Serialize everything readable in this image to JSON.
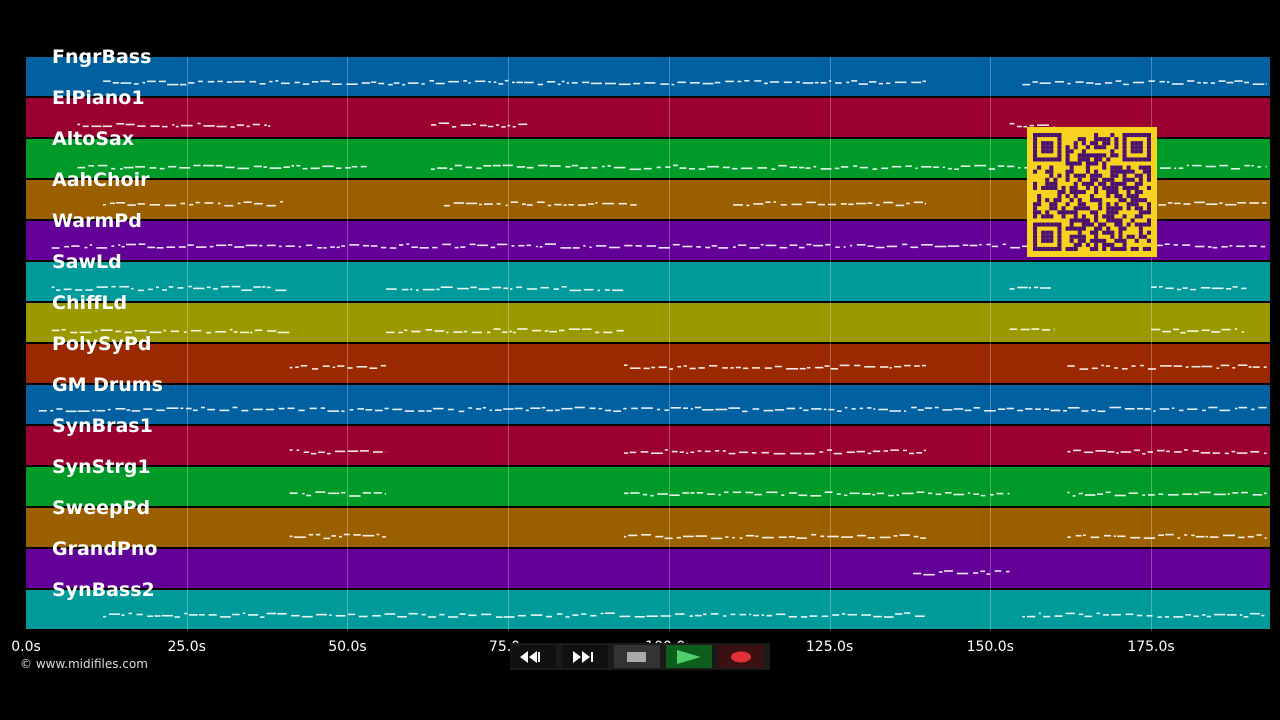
{
  "tracks": [
    {
      "name": "FngrBass",
      "color": "#0060a0"
    },
    {
      "name": "ElPiano1",
      "color": "#9a0030"
    },
    {
      "name": "AltoSax",
      "color": "#009a28"
    },
    {
      "name": "AahChoir",
      "color": "#9a6000"
    },
    {
      "name": "WarmPd",
      "color": "#620098"
    },
    {
      "name": "SawLd",
      "color": "#009a9a"
    },
    {
      "name": "ChiffLd",
      "color": "#9a9a00"
    },
    {
      "name": "PolySyPd",
      "color": "#9a2800"
    },
    {
      "name": "GM Drums",
      "color": "#0060a0"
    },
    {
      "name": "SynBras1",
      "color": "#9a0030"
    },
    {
      "name": "SynStrg1",
      "color": "#009a28"
    },
    {
      "name": "SweepPd",
      "color": "#9a6000"
    },
    {
      "name": "GrandPno",
      "color": "#620098"
    },
    {
      "name": "SynBass2",
      "color": "#009a9a"
    }
  ],
  "timeline": {
    "ticks": [
      "0.0s",
      "25.0s",
      "50.0s",
      "75.0s",
      "100.0s",
      "125.0s",
      "150.0s",
      "175.0s"
    ],
    "tick_seconds": [
      0,
      25,
      50,
      75,
      100,
      125,
      150,
      175
    ],
    "duration_seconds": 193.3
  },
  "credit": "© www.midifiles.com",
  "transport": {
    "buttons": [
      {
        "name": "rewind-button",
        "icon": "rewind-icon"
      },
      {
        "name": "fast-forward-button",
        "icon": "fast-forward-icon"
      },
      {
        "name": "stop-button",
        "icon": "stop-icon"
      },
      {
        "name": "play-button",
        "icon": "play-icon"
      },
      {
        "name": "record-button",
        "icon": "record-icon"
      }
    ]
  },
  "qr_code": {
    "icon": "qr-code-icon",
    "color": "#f7d31f"
  }
}
